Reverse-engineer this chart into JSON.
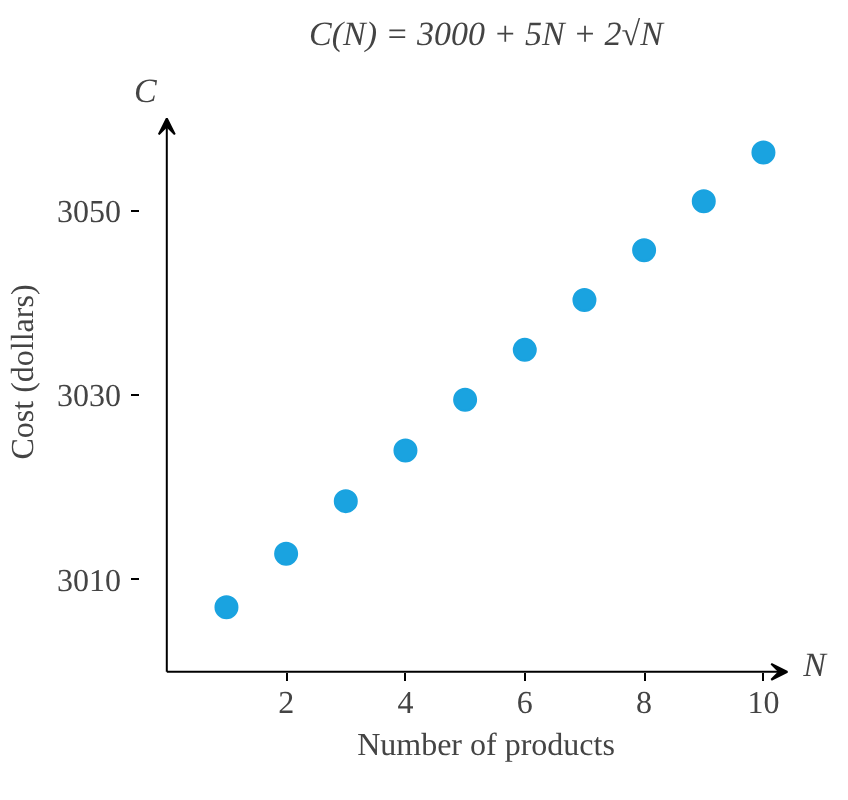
{
  "chart_data": {
    "type": "scatter",
    "title": "C(N) = 3000 + 5N + 2√N",
    "xlabel": "Number of products",
    "ylabel": "Cost (dollars)",
    "annotations": [
      "C",
      "N"
    ],
    "x": [
      1,
      2,
      3,
      4,
      5,
      6,
      7,
      8,
      9,
      10
    ],
    "series": [
      {
        "color": "#1aa3e0",
        "values": [
          3007,
          3012.8,
          3018.5,
          3024,
          3029.5,
          3034.9,
          3040.3,
          3045.7,
          3051,
          3056.3
        ]
      }
    ],
    "xlim": [
      0,
      10.4
    ],
    "ylim": [
      3000,
      3060
    ],
    "xticks": [
      2,
      4,
      6,
      8,
      10
    ],
    "yticks": [
      3010,
      3030,
      3050
    ],
    "grid": false,
    "marker": "circle"
  }
}
